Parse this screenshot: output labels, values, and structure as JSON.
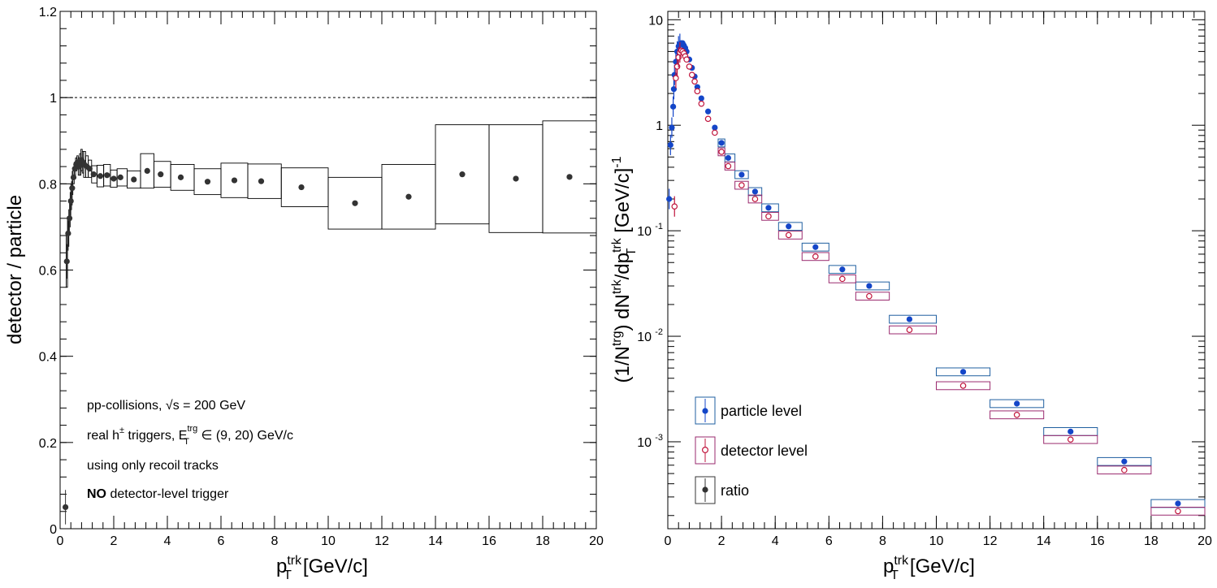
{
  "colors": {
    "particle": "#1446c8",
    "particle_box": "#1f5fa0",
    "detector": "#c0143c",
    "detector_box": "#9a2a6e",
    "ratio": "#333333"
  },
  "left": {
    "y_ticks": [
      "0",
      "0.2",
      "0.4",
      "0.6",
      "0.8",
      "1",
      "1.2"
    ],
    "x_ticks": [
      "0",
      "2",
      "4",
      "6",
      "8",
      "10",
      "12",
      "14",
      "16",
      "18",
      "20"
    ],
    "ylabel": "detector / particle",
    "xlabel_main": "p",
    "xlabel_sup": "trk",
    "xlabel_sub": "T",
    "xlabel_unit": "[GeV/c]",
    "annotations": {
      "line1": "pp-collisions, √s = 200 GeV",
      "line2_a": "real h",
      "line2_pm": "±",
      "line2_b": " triggers, E",
      "line2_sup": "trg",
      "line2_sub": "T",
      "line2_c": " ∈ (9, 20) GeV/c",
      "line3": "using only recoil tracks",
      "line4_bold": "NO",
      "line4_rest": " detector-level trigger"
    }
  },
  "right": {
    "y_ticks": [
      "10",
      "1",
      "10",
      "10",
      "10"
    ],
    "y_tick_exps": [
      "",
      "",
      "-1",
      "-2",
      "-3"
    ],
    "x_ticks": [
      "0",
      "2",
      "4",
      "6",
      "8",
      "10",
      "12",
      "14",
      "16",
      "18",
      "20"
    ],
    "ylabel_a": "(1/N",
    "ylabel_sup1": "trg",
    "ylabel_b": ") dN",
    "ylabel_sup2": "trk",
    "ylabel_c": "/dp",
    "ylabel_sub": "T",
    "ylabel_sup3": "trk",
    "ylabel_d": " [GeV/c]",
    "ylabel_sup4": "-1",
    "xlabel_main": "p",
    "xlabel_sup": "trk",
    "xlabel_sub": "T",
    "xlabel_unit": "[GeV/c]",
    "legend": [
      "particle level",
      "detector level",
      "ratio"
    ]
  },
  "chart_data": [
    {
      "type": "scatter",
      "ylabel": "detector / particle",
      "xlabel": "p_T^trk [GeV/c]",
      "xlim": [
        0,
        20
      ],
      "ylim": [
        0,
        1.2
      ],
      "reference_line": 1.0,
      "series": [
        {
          "name": "ratio",
          "points": [
            {
              "x": 0.2,
              "y": 0.05,
              "sys": 0.0
            },
            {
              "x": 0.25,
              "y": 0.62,
              "sys": 0.06
            },
            {
              "x": 0.3,
              "y": 0.685,
              "sys": 0.03
            },
            {
              "x": 0.35,
              "y": 0.72,
              "sys": 0.02
            },
            {
              "x": 0.4,
              "y": 0.76,
              "sys": 0.02
            },
            {
              "x": 0.45,
              "y": 0.79,
              "sys": 0.015
            },
            {
              "x": 0.5,
              "y": 0.815,
              "sys": 0.015
            },
            {
              "x": 0.55,
              "y": 0.835,
              "sys": 0.015
            },
            {
              "x": 0.6,
              "y": 0.845,
              "sys": 0.015
            },
            {
              "x": 0.65,
              "y": 0.85,
              "sys": 0.015
            },
            {
              "x": 0.7,
              "y": 0.84,
              "sys": 0.02
            },
            {
              "x": 0.75,
              "y": 0.845,
              "sys": 0.025
            },
            {
              "x": 0.8,
              "y": 0.855,
              "sys": 0.025
            },
            {
              "x": 0.85,
              "y": 0.85,
              "sys": 0.025
            },
            {
              "x": 0.9,
              "y": 0.845,
              "sys": 0.03
            },
            {
              "x": 1.0,
              "y": 0.84,
              "sys": 0.025
            },
            {
              "x": 1.1,
              "y": 0.835,
              "sys": 0.02
            },
            {
              "x": 1.25,
              "y": 0.822,
              "sys": 0.02
            },
            {
              "x": 1.5,
              "y": 0.818,
              "sys": 0.025
            },
            {
              "x": 1.75,
              "y": 0.82,
              "sys": 0.025
            },
            {
              "x": 2.0,
              "y": 0.812,
              "sys": 0.02
            },
            {
              "x": 2.25,
              "y": 0.815,
              "sys": 0.02
            },
            {
              "x": 2.75,
              "y": 0.81,
              "sys": 0.02
            },
            {
              "x": 3.25,
              "y": 0.83,
              "sys": 0.04
            },
            {
              "x": 3.75,
              "y": 0.822,
              "sys": 0.03
            },
            {
              "x": 4.5,
              "y": 0.815,
              "sys": 0.03
            },
            {
              "x": 5.5,
              "y": 0.805,
              "sys": 0.03
            },
            {
              "x": 6.5,
              "y": 0.808,
              "sys": 0.04
            },
            {
              "x": 7.5,
              "y": 0.806,
              "sys": 0.04
            },
            {
              "x": 9.0,
              "y": 0.792,
              "sys": 0.045
            },
            {
              "x": 11.0,
              "y": 0.755,
              "sys": 0.06
            },
            {
              "x": 13.0,
              "y": 0.77,
              "sys": 0.075
            },
            {
              "x": 15.0,
              "y": 0.822,
              "sys": 0.115
            },
            {
              "x": 17.0,
              "y": 0.812,
              "sys": 0.125
            },
            {
              "x": 19.0,
              "y": 0.816,
              "sys": 0.13
            }
          ]
        }
      ]
    },
    {
      "type": "scatter",
      "ylabel": "(1/N^trg) dN^trk/dp_T^trk [GeV/c]^-1",
      "xlabel": "p_T^trk [GeV/c]",
      "xlim": [
        0,
        20
      ],
      "ylim": [
        0.00015,
        12
      ],
      "yscale": "log",
      "legend_position": "bottom-left",
      "series": [
        {
          "name": "particle level",
          "points": [
            {
              "x": 0.05,
              "y": 0.2
            },
            {
              "x": 0.1,
              "y": 0.65
            },
            {
              "x": 0.15,
              "y": 0.95
            },
            {
              "x": 0.2,
              "y": 1.5
            },
            {
              "x": 0.225,
              "y": 2.2
            },
            {
              "x": 0.25,
              "y": 3.0
            },
            {
              "x": 0.3,
              "y": 4.0
            },
            {
              "x": 0.35,
              "y": 5.0
            },
            {
              "x": 0.4,
              "y": 5.6
            },
            {
              "x": 0.45,
              "y": 5.9
            },
            {
              "x": 0.5,
              "y": 6.0
            },
            {
              "x": 0.55,
              "y": 6.0
            },
            {
              "x": 0.6,
              "y": 5.7
            },
            {
              "x": 0.65,
              "y": 5.4
            },
            {
              "x": 0.7,
              "y": 5.0
            },
            {
              "x": 0.8,
              "y": 4.2
            },
            {
              "x": 0.9,
              "y": 3.5
            },
            {
              "x": 1.0,
              "y": 2.9
            },
            {
              "x": 1.1,
              "y": 2.3
            },
            {
              "x": 1.25,
              "y": 1.8
            },
            {
              "x": 1.5,
              "y": 1.35
            },
            {
              "x": 1.75,
              "y": 0.95
            },
            {
              "x": 2.0,
              "y": 0.68
            },
            {
              "x": 2.25,
              "y": 0.49
            },
            {
              "x": 2.75,
              "y": 0.34
            },
            {
              "x": 3.25,
              "y": 0.235
            },
            {
              "x": 3.75,
              "y": 0.165
            },
            {
              "x": 4.5,
              "y": 0.11
            },
            {
              "x": 5.5,
              "y": 0.07
            },
            {
              "x": 6.5,
              "y": 0.043
            },
            {
              "x": 7.5,
              "y": 0.03
            },
            {
              "x": 9.0,
              "y": 0.0145
            },
            {
              "x": 11.0,
              "y": 0.0046
            },
            {
              "x": 13.0,
              "y": 0.0023
            },
            {
              "x": 15.0,
              "y": 0.00125
            },
            {
              "x": 17.0,
              "y": 0.00065
            },
            {
              "x": 19.0,
              "y": 0.00026
            }
          ]
        },
        {
          "name": "detector level",
          "points": [
            {
              "x": 0.25,
              "y": 0.17
            },
            {
              "x": 0.3,
              "y": 2.8
            },
            {
              "x": 0.35,
              "y": 3.6
            },
            {
              "x": 0.4,
              "y": 4.4
            },
            {
              "x": 0.45,
              "y": 4.9
            },
            {
              "x": 0.5,
              "y": 5.1
            },
            {
              "x": 0.55,
              "y": 5.0
            },
            {
              "x": 0.6,
              "y": 4.8
            },
            {
              "x": 0.65,
              "y": 4.5
            },
            {
              "x": 0.7,
              "y": 4.2
            },
            {
              "x": 0.8,
              "y": 3.6
            },
            {
              "x": 0.9,
              "y": 3.0
            },
            {
              "x": 1.0,
              "y": 2.6
            },
            {
              "x": 1.1,
              "y": 2.1
            },
            {
              "x": 1.25,
              "y": 1.6
            },
            {
              "x": 1.5,
              "y": 1.15
            },
            {
              "x": 1.75,
              "y": 0.85
            },
            {
              "x": 2.0,
              "y": 0.56
            },
            {
              "x": 2.25,
              "y": 0.41
            },
            {
              "x": 2.75,
              "y": 0.27
            },
            {
              "x": 3.25,
              "y": 0.2
            },
            {
              "x": 3.75,
              "y": 0.137
            },
            {
              "x": 4.5,
              "y": 0.091
            },
            {
              "x": 5.5,
              "y": 0.057
            },
            {
              "x": 6.5,
              "y": 0.035
            },
            {
              "x": 7.5,
              "y": 0.024
            },
            {
              "x": 9.0,
              "y": 0.0115
            },
            {
              "x": 11.0,
              "y": 0.0034
            },
            {
              "x": 13.0,
              "y": 0.0018
            },
            {
              "x": 15.0,
              "y": 0.00105
            },
            {
              "x": 17.0,
              "y": 0.00054
            },
            {
              "x": 19.0,
              "y": 0.00022
            }
          ]
        }
      ]
    }
  ]
}
